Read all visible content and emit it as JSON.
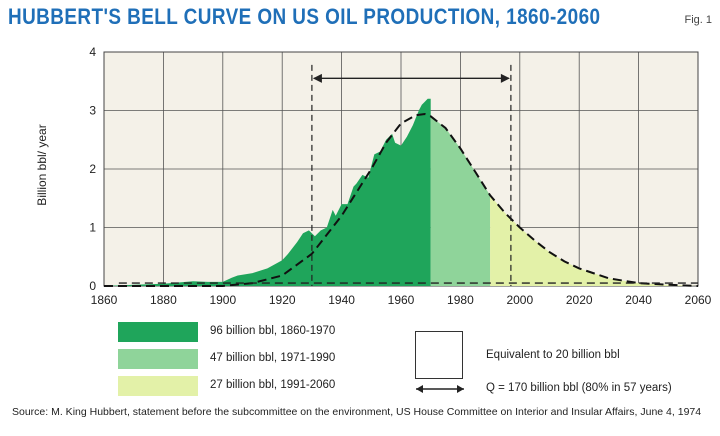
{
  "title": "HUBBERT'S BELL CURVE ON US OIL PRODUCTION, 1860-2060",
  "fig_label": "Fig. 1",
  "legend": [
    {
      "label": "96 billion bbl, 1860-1970",
      "color": "#1fa55b"
    },
    {
      "label": "47 billion bbl, 1971-1990",
      "color": "#8fd49a"
    },
    {
      "label": "27 billion bbl, 1991-2060",
      "color": "#e3f1a8"
    }
  ],
  "equivalent_label": "Equivalent to 20 billion bbl",
  "q_label": "Q = 170 billion bbl (80% in 57 years)",
  "source": "Source: M. King Hubbert, statement before the subcommittee on the environment, US House Committee on Interior and Insular Affairs, June 4, 1974",
  "chart_data": {
    "type": "area",
    "title": "HUBBERT'S BELL CURVE ON US OIL PRODUCTION, 1860-2060",
    "xlabel": "",
    "ylabel": "Billion bbl/ year",
    "xlim": [
      1860,
      2060
    ],
    "ylim": [
      0,
      4
    ],
    "x_ticks": [
      1860,
      1880,
      1900,
      1920,
      1940,
      1960,
      1980,
      2000,
      2020,
      2040,
      2060
    ],
    "y_ticks": [
      0,
      1,
      2,
      3,
      4
    ],
    "grid": true,
    "colors": {
      "historical": "#1fa55b",
      "mid": "#8fd49a",
      "future": "#e3f1a8"
    },
    "actual_production": {
      "x": [
        1860,
        1870,
        1880,
        1890,
        1895,
        1900,
        1903,
        1905,
        1910,
        1915,
        1920,
        1922,
        1925,
        1927,
        1929,
        1931,
        1933,
        1935,
        1937,
        1938,
        1940,
        1942,
        1944,
        1945,
        1947,
        1949,
        1951,
        1953,
        1955,
        1957,
        1958,
        1960,
        1962,
        1964,
        1966,
        1967,
        1968,
        1969,
        1970
      ],
      "y": [
        0.0,
        0.02,
        0.04,
        0.08,
        0.07,
        0.07,
        0.14,
        0.18,
        0.22,
        0.3,
        0.44,
        0.55,
        0.75,
        0.9,
        0.95,
        0.85,
        0.95,
        1.0,
        1.3,
        1.2,
        1.4,
        1.4,
        1.7,
        1.75,
        1.9,
        1.85,
        2.25,
        2.3,
        2.5,
        2.6,
        2.45,
        2.4,
        2.55,
        2.75,
        3.0,
        3.1,
        3.15,
        3.2,
        3.2
      ]
    },
    "projected_curve": {
      "x": [
        1860,
        1880,
        1900,
        1910,
        1920,
        1930,
        1940,
        1950,
        1955,
        1960,
        1965,
        1968,
        1970,
        1975,
        1980,
        1985,
        1990,
        1995,
        2000,
        2005,
        2010,
        2015,
        2020,
        2030,
        2040,
        2050,
        2060
      ],
      "y": [
        0.0,
        0.0,
        0.0,
        0.05,
        0.18,
        0.55,
        1.2,
        2.0,
        2.45,
        2.78,
        2.92,
        2.94,
        2.9,
        2.7,
        2.35,
        1.95,
        1.55,
        1.25,
        1.0,
        0.78,
        0.58,
        0.42,
        0.3,
        0.13,
        0.05,
        0.02,
        0.0
      ]
    },
    "annotation_span": {
      "x_start": 1930,
      "x_end": 1997,
      "y": 3.55
    }
  }
}
